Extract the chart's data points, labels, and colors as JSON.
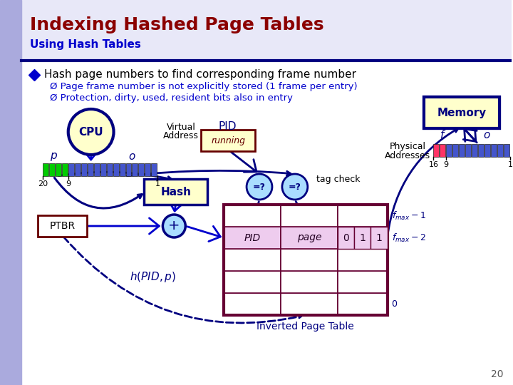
{
  "title": "Indexing Hashed Page Tables",
  "subtitle": "Using Hash Tables",
  "title_color": "#8B0000",
  "subtitle_color": "#0000CD",
  "bg_color": "#FFFFFF",
  "dark_blue": "#000080",
  "mid_blue": "#0000CD",
  "bullet_text": "Hash page numbers to find corresponding frame number",
  "sub1": "Page frame number is not explicitly stored (1 frame per entry)",
  "sub2": "Protection, dirty, used, resident bits also in entry",
  "page_num": "20",
  "left_bar_color": "#AAAADD",
  "header_bg": "#E8E8F8",
  "divider_color": "#000080",
  "cpu_fill": "#FFFFCC",
  "hash_fill": "#FFFFCC",
  "ptbr_fill": "#FFFFCC",
  "ptbr_edge": "#660000",
  "plus_fill": "#AADDFF",
  "plus_edge": "#000080",
  "running_fill": "#FFFFCC",
  "running_edge": "#660000",
  "eq_fill": "#AADDFF",
  "eq_edge": "#000080",
  "table_edge": "#660033",
  "table_hl": "#EECCEE",
  "mem_fill": "#FFFFCC",
  "mem_edge": "#000080",
  "green_cell": "#00CC00",
  "blue_cell": "#4455CC",
  "pink_cell": "#FF3366"
}
